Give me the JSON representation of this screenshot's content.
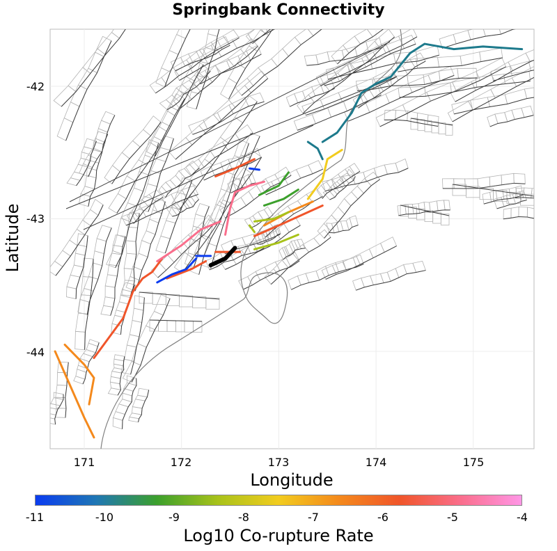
{
  "title": "Springbank Connectivity",
  "xaxis": {
    "label": "Longitude",
    "ticks": [
      "171",
      "172",
      "173",
      "174",
      "175"
    ]
  },
  "yaxis": {
    "label": "Latitude",
    "ticks": [
      "-42",
      "-43",
      "-44"
    ]
  },
  "colorbar": {
    "label": "Log10 Co-rupture Rate",
    "ticks": [
      "-11",
      "-10",
      "-9",
      "-8",
      "-7",
      "-6",
      "-5",
      "-4"
    ],
    "colors": [
      "#0a3cf0",
      "#1f77b4",
      "#3ca02c",
      "#a8c21a",
      "#f2cc1e",
      "#f4891c",
      "#f0552a",
      "#fa6e8c",
      "#ff96e6"
    ]
  },
  "map": {
    "extent": {
      "lon": [
        170.65,
        175.65
      ],
      "lat": [
        -41.6,
        -44.7
      ]
    },
    "grid": true,
    "background_faults_color": "#3c3c3c",
    "fault_planes_color": "#b4b4b4",
    "coastline_color": "#808080",
    "source_fault": {
      "name_visible": false,
      "color": "#000000"
    },
    "ruptures": [
      {
        "color": "#1d7a8c",
        "value": -10,
        "path": [
          [
            173.3,
            -42.42
          ],
          [
            173.4,
            -42.47
          ],
          [
            173.45,
            -42.55
          ]
        ]
      },
      {
        "color": "#1d7a8c",
        "value": -10,
        "path": [
          [
            173.45,
            -42.42
          ],
          [
            173.6,
            -42.35
          ],
          [
            173.75,
            -42.2
          ],
          [
            173.85,
            -42.05
          ],
          [
            174.0,
            -41.98
          ],
          [
            174.15,
            -41.93
          ],
          [
            174.35,
            -41.75
          ],
          [
            174.5,
            -41.68
          ],
          [
            174.8,
            -41.72
          ],
          [
            175.1,
            -41.7
          ],
          [
            175.5,
            -41.72
          ]
        ]
      },
      {
        "color": "#f0552a",
        "value": -5.3,
        "path": [
          [
            171.1,
            -44.05
          ],
          [
            171.2,
            -43.95
          ],
          [
            171.4,
            -43.75
          ],
          [
            171.5,
            -43.55
          ],
          [
            171.6,
            -43.45
          ],
          [
            171.7,
            -43.4
          ],
          [
            171.8,
            -43.3
          ]
        ]
      },
      {
        "color": "#f4891c",
        "value": -6.3,
        "path": [
          [
            170.8,
            -43.95
          ],
          [
            171.0,
            -44.1
          ],
          [
            171.1,
            -44.2
          ],
          [
            171.05,
            -44.4
          ]
        ]
      },
      {
        "color": "#f4891c",
        "value": -6.3,
        "path": [
          [
            170.7,
            -44.0
          ],
          [
            170.85,
            -44.25
          ],
          [
            171.0,
            -44.5
          ],
          [
            171.1,
            -44.65
          ]
        ]
      },
      {
        "color": "#fa6e8c",
        "value": -4.6,
        "path": [
          [
            171.75,
            -43.32
          ],
          [
            172.0,
            -43.2
          ],
          [
            172.2,
            -43.08
          ],
          [
            172.4,
            -43.02
          ]
        ]
      },
      {
        "color": "#fa6e8c",
        "value": -4.6,
        "path": [
          [
            172.45,
            -43.12
          ],
          [
            172.5,
            -42.92
          ],
          [
            172.55,
            -42.8
          ],
          [
            172.7,
            -42.75
          ],
          [
            172.85,
            -42.72
          ]
        ]
      },
      {
        "color": "#f0552a",
        "value": -5.3,
        "path": [
          [
            172.35,
            -42.68
          ],
          [
            172.55,
            -42.62
          ],
          [
            172.75,
            -42.55
          ]
        ]
      },
      {
        "color": "#f0552a",
        "value": -5.3,
        "path": [
          [
            172.75,
            -43.13
          ],
          [
            173.0,
            -43.05
          ],
          [
            173.3,
            -42.95
          ],
          [
            173.45,
            -42.9
          ]
        ]
      },
      {
        "color": "#f0552a",
        "value": -5.3,
        "path": [
          [
            171.85,
            -43.45
          ],
          [
            172.1,
            -43.38
          ],
          [
            172.25,
            -43.32
          ]
        ]
      },
      {
        "color": "#f0552a",
        "value": -5.3,
        "path": [
          [
            172.35,
            -43.25
          ],
          [
            172.6,
            -43.25
          ]
        ]
      },
      {
        "color": "#f4891c",
        "value": -6.3,
        "path": [
          [
            172.85,
            -43.05
          ],
          [
            173.1,
            -42.95
          ],
          [
            173.35,
            -42.87
          ]
        ]
      },
      {
        "color": "#f2cc1e",
        "value": -7.2,
        "path": [
          [
            173.3,
            -42.85
          ],
          [
            173.45,
            -42.7
          ],
          [
            173.5,
            -42.55
          ],
          [
            173.65,
            -42.48
          ]
        ]
      },
      {
        "color": "#3ca02c",
        "value": -8.8,
        "path": [
          [
            172.85,
            -42.9
          ],
          [
            173.05,
            -42.85
          ],
          [
            173.2,
            -42.78
          ]
        ]
      },
      {
        "color": "#3ca02c",
        "value": -8.8,
        "path": [
          [
            172.8,
            -42.82
          ],
          [
            173.0,
            -42.75
          ],
          [
            173.1,
            -42.65
          ]
        ]
      },
      {
        "color": "#a8c21a",
        "value": -8.0,
        "path": [
          [
            172.75,
            -43.02
          ],
          [
            172.95,
            -43.0
          ],
          [
            173.1,
            -42.95
          ]
        ]
      },
      {
        "color": "#a8c21a",
        "value": -8.0,
        "path": [
          [
            172.75,
            -43.23
          ],
          [
            173.0,
            -43.18
          ],
          [
            173.2,
            -43.12
          ]
        ]
      },
      {
        "color": "#a8c21a",
        "value": -8.0,
        "path": [
          [
            172.7,
            -43.05
          ],
          [
            172.75,
            -43.1
          ]
        ]
      },
      {
        "color": "#0a3cf0",
        "value": -10.8,
        "path": [
          [
            171.75,
            -43.48
          ],
          [
            171.9,
            -43.42
          ],
          [
            172.05,
            -43.38
          ],
          [
            172.15,
            -43.3
          ]
        ]
      },
      {
        "color": "#0a3cf0",
        "value": -10.8,
        "path": [
          [
            172.15,
            -43.28
          ],
          [
            172.3,
            -43.28
          ]
        ]
      },
      {
        "color": "#0a3cf0",
        "value": -10.8,
        "path": [
          [
            172.7,
            -42.62
          ],
          [
            172.8,
            -42.63
          ]
        ]
      }
    ],
    "source_path": [
      [
        172.3,
        -43.35
      ],
      [
        172.45,
        -43.3
      ],
      [
        172.55,
        -43.22
      ]
    ]
  }
}
